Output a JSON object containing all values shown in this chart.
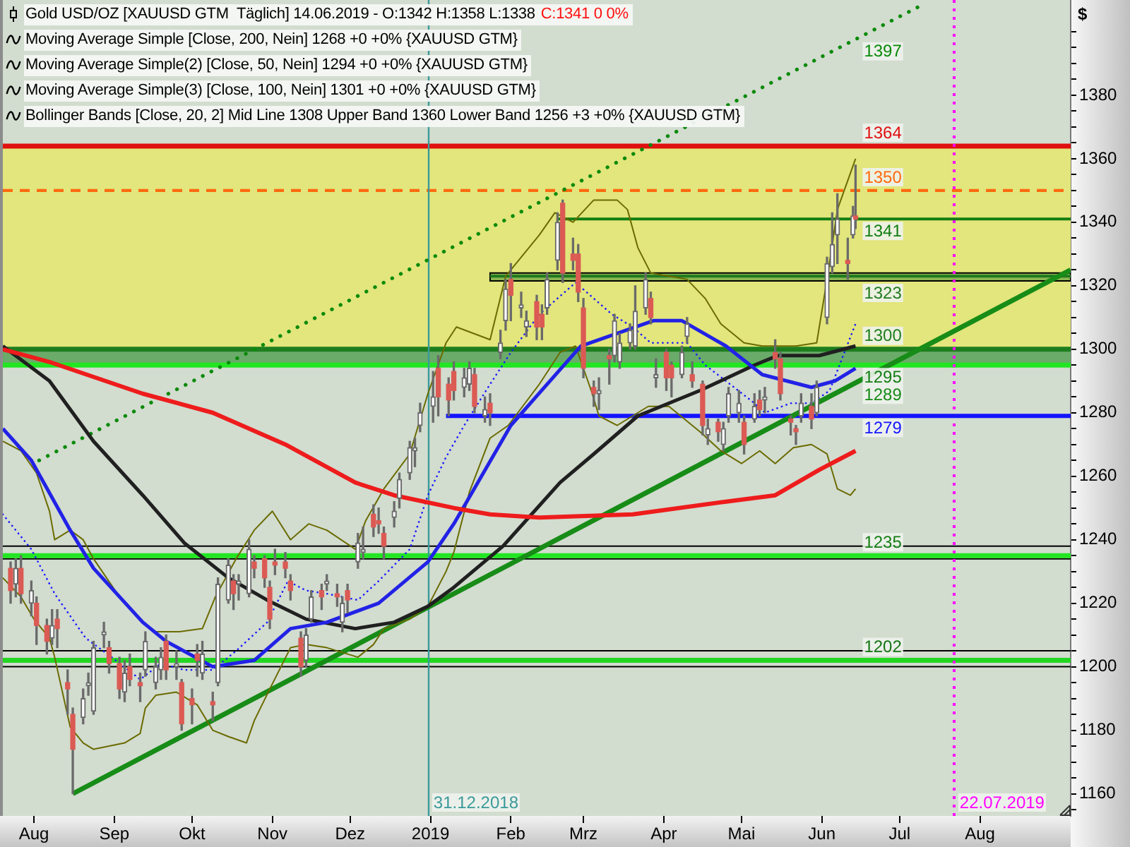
{
  "chart_data": {
    "type": "candlestick",
    "title": "Gold USD/OZ [XAUUSD GTM  Täglich] 14.06.2019 - O:1342 H:1358 L:1338",
    "subtitle": "C:1341 0 0%",
    "ylabel": "$",
    "annotations": [
      "Moving Average Simple [Close, 200, Nein] 1268 +0 +0% {XAUUSD GTM}",
      "Moving Average Simple(2) [Close, 50, Nein] 1294 +0 +0% {XAUUSD GTM}",
      "Moving Average Simple(3) [Close, 100, Nein] 1301 +0 +0% {XAUUSD GTM}",
      "Bollinger Bands [Close, 20, 2] Mid Line 1308 Upper Band 1360 Lower Band 1256 +3 +0% {XAUUSD GTM}"
    ],
    "x": [
      "2018-07-23",
      "2018-07-25",
      "2018-07-27",
      "2018-07-31",
      "2018-08-02",
      "2018-08-06",
      "2018-08-08",
      "2018-08-10",
      "2018-08-14",
      "2018-08-16",
      "2018-08-20",
      "2018-08-22",
      "2018-08-24",
      "2018-08-28",
      "2018-08-30",
      "2018-09-03",
      "2018-09-05",
      "2018-09-07",
      "2018-09-11",
      "2018-09-13",
      "2018-09-17",
      "2018-09-19",
      "2018-09-21",
      "2018-09-25",
      "2018-09-27",
      "2018-10-01",
      "2018-10-03",
      "2018-10-05",
      "2018-10-09",
      "2018-10-11",
      "2018-10-15",
      "2018-10-17",
      "2018-10-19",
      "2018-10-23",
      "2018-10-25",
      "2018-10-29",
      "2018-10-31",
      "2018-11-02",
      "2018-11-06",
      "2018-11-08",
      "2018-11-12",
      "2018-11-14",
      "2018-11-16",
      "2018-11-20",
      "2018-11-22",
      "2018-11-26",
      "2018-11-28",
      "2018-11-30",
      "2018-12-04",
      "2018-12-06",
      "2018-12-10",
      "2018-12-12",
      "2018-12-14",
      "2018-12-18",
      "2018-12-20",
      "2018-12-24",
      "2018-12-26",
      "2018-12-28",
      "2019-01-02",
      "2019-01-04",
      "2019-01-08",
      "2019-01-10",
      "2019-01-14",
      "2019-01-16",
      "2019-01-18",
      "2019-01-22",
      "2019-01-24",
      "2019-01-28",
      "2019-01-30",
      "2019-02-01",
      "2019-02-05",
      "2019-02-07",
      "2019-02-11",
      "2019-02-13",
      "2019-02-15",
      "2019-02-19",
      "2019-02-21",
      "2019-02-25",
      "2019-02-27",
      "2019-03-01",
      "2019-03-05",
      "2019-03-07",
      "2019-03-11",
      "2019-03-13",
      "2019-03-15",
      "2019-03-19",
      "2019-03-21",
      "2019-03-25",
      "2019-03-27",
      "2019-03-29",
      "2019-04-02",
      "2019-04-04",
      "2019-04-08",
      "2019-04-10",
      "2019-04-12",
      "2019-04-16",
      "2019-04-18",
      "2019-04-22",
      "2019-04-24",
      "2019-04-26",
      "2019-04-30",
      "2019-05-02",
      "2019-05-06",
      "2019-05-08",
      "2019-05-10",
      "2019-05-14",
      "2019-05-16",
      "2019-05-20",
      "2019-05-22",
      "2019-05-24",
      "2019-05-28",
      "2019-05-30",
      "2019-06-03",
      "2019-06-05",
      "2019-06-07",
      "2019-06-11",
      "2019-06-13",
      "2019-06-14"
    ],
    "ohlc": [
      [
        1231,
        1233,
        1220,
        1224
      ],
      [
        1226,
        1234,
        1222,
        1231
      ],
      [
        1231,
        1235,
        1220,
        1223
      ],
      [
        1220,
        1227,
        1216,
        1224
      ],
      [
        1220,
        1222,
        1207,
        1213
      ],
      [
        1213,
        1215,
        1204,
        1208
      ],
      [
        1209,
        1218,
        1207,
        1213
      ],
      [
        1215,
        1218,
        1206,
        1212
      ],
      [
        1195,
        1199,
        1185,
        1193
      ],
      [
        1185,
        1187,
        1160,
        1174
      ],
      [
        1184,
        1193,
        1182,
        1190
      ],
      [
        1194,
        1198,
        1191,
        1195
      ],
      [
        1186,
        1208,
        1185,
        1206
      ],
      [
        1210,
        1214,
        1206,
        1211
      ],
      [
        1206,
        1208,
        1198,
        1201
      ],
      [
        1201,
        1203,
        1190,
        1193
      ],
      [
        1192,
        1202,
        1189,
        1198
      ],
      [
        1200,
        1204,
        1194,
        1196
      ],
      [
        1195,
        1198,
        1189,
        1194
      ],
      [
        1199,
        1211,
        1197,
        1208
      ],
      [
        1195,
        1203,
        1193,
        1200
      ],
      [
        1199,
        1206,
        1196,
        1203
      ],
      [
        1208,
        1210,
        1196,
        1199
      ],
      [
        1200,
        1205,
        1196,
        1201
      ],
      [
        1195,
        1196,
        1180,
        1182
      ],
      [
        1190,
        1193,
        1182,
        1188
      ],
      [
        1204,
        1207,
        1197,
        1202
      ],
      [
        1198,
        1208,
        1196,
        1204
      ],
      [
        1189,
        1192,
        1183,
        1188
      ],
      [
        1195,
        1228,
        1194,
        1226
      ],
      [
        1221,
        1234,
        1220,
        1232
      ],
      [
        1227,
        1229,
        1218,
        1223
      ],
      [
        1226,
        1229,
        1221,
        1227
      ],
      [
        1223,
        1240,
        1222,
        1237
      ],
      [
        1233,
        1235,
        1228,
        1231
      ],
      [
        1234,
        1235,
        1225,
        1228
      ],
      [
        1225,
        1227,
        1212,
        1215
      ],
      [
        1233,
        1237,
        1229,
        1232
      ],
      [
        1233,
        1236,
        1228,
        1231
      ],
      [
        1227,
        1229,
        1221,
        1224
      ],
      [
        1209,
        1211,
        1197,
        1200
      ],
      [
        1202,
        1212,
        1200,
        1210
      ],
      [
        1215,
        1224,
        1214,
        1222
      ],
      [
        1224,
        1226,
        1218,
        1222
      ],
      [
        1226,
        1229,
        1224,
        1227
      ],
      [
        1223,
        1226,
        1219,
        1222
      ],
      [
        1214,
        1222,
        1211,
        1220
      ],
      [
        1224,
        1226,
        1217,
        1221
      ],
      [
        1233,
        1242,
        1231,
        1239
      ],
      [
        1236,
        1244,
        1234,
        1237
      ],
      [
        1248,
        1251,
        1241,
        1244
      ],
      [
        1246,
        1250,
        1242,
        1245
      ],
      [
        1242,
        1244,
        1234,
        1238
      ],
      [
        1247,
        1252,
        1244,
        1249
      ],
      [
        1253,
        1261,
        1250,
        1259
      ],
      [
        1261,
        1271,
        1259,
        1269
      ],
      [
        1268,
        1272,
        1263,
        1269
      ],
      [
        1276,
        1283,
        1274,
        1280
      ],
      [
        1282,
        1293,
        1277,
        1285
      ],
      [
        1294,
        1298,
        1279,
        1285
      ],
      [
        1289,
        1291,
        1279,
        1284
      ],
      [
        1293,
        1296,
        1284,
        1287
      ],
      [
        1288,
        1294,
        1285,
        1291
      ],
      [
        1289,
        1296,
        1287,
        1294
      ],
      [
        1292,
        1294,
        1280,
        1282
      ],
      [
        1279,
        1285,
        1277,
        1281
      ],
      [
        1283,
        1286,
        1276,
        1280
      ],
      [
        1299,
        1306,
        1297,
        1302
      ],
      [
        1309,
        1322,
        1306,
        1319
      ],
      [
        1322,
        1327,
        1309,
        1317
      ],
      [
        1313,
        1318,
        1310,
        1314
      ],
      [
        1307,
        1312,
        1304,
        1309
      ],
      [
        1315,
        1317,
        1303,
        1307
      ],
      [
        1311,
        1314,
        1303,
        1307
      ],
      [
        1313,
        1324,
        1311,
        1322
      ],
      [
        1328,
        1343,
        1325,
        1340
      ],
      [
        1346,
        1347,
        1321,
        1324
      ],
      [
        1330,
        1335,
        1325,
        1328
      ],
      [
        1330,
        1333,
        1315,
        1318
      ],
      [
        1313,
        1316,
        1291,
        1294
      ],
      [
        1288,
        1290,
        1282,
        1286
      ],
      [
        1286,
        1291,
        1281,
        1287
      ],
      [
        1298,
        1300,
        1289,
        1297
      ],
      [
        1298,
        1311,
        1296,
        1309
      ],
      [
        1296,
        1305,
        1294,
        1302
      ],
      [
        1302,
        1308,
        1300,
        1306
      ],
      [
        1301,
        1320,
        1300,
        1312
      ],
      [
        1313,
        1324,
        1311,
        1322
      ],
      [
        1316,
        1318,
        1308,
        1310
      ],
      [
        1291,
        1297,
        1288,
        1292
      ],
      [
        1299,
        1300,
        1287,
        1291
      ],
      [
        1295,
        1296,
        1285,
        1291
      ],
      [
        1292,
        1301,
        1291,
        1299
      ],
      [
        1304,
        1310,
        1302,
        1308
      ],
      [
        1292,
        1296,
        1288,
        1290
      ],
      [
        1289,
        1290,
        1273,
        1276
      ],
      [
        1273,
        1278,
        1270,
        1275
      ],
      [
        1277,
        1278,
        1271,
        1274
      ],
      [
        1270,
        1277,
        1268,
        1275
      ],
      [
        1279,
        1288,
        1277,
        1286
      ],
      [
        1280,
        1287,
        1277,
        1283
      ],
      [
        1277,
        1279,
        1267,
        1270
      ],
      [
        1278,
        1286,
        1277,
        1282
      ],
      [
        1284,
        1287,
        1279,
        1281
      ],
      [
        1284,
        1288,
        1280,
        1285
      ],
      [
        1299,
        1303,
        1294,
        1297
      ],
      [
        1297,
        1299,
        1284,
        1286
      ],
      [
        1278,
        1279,
        1273,
        1277
      ],
      [
        1275,
        1276,
        1270,
        1274
      ],
      [
        1279,
        1286,
        1277,
        1283
      ],
      [
        1282,
        1286,
        1275,
        1278
      ],
      [
        1280,
        1290,
        1279,
        1288
      ],
      [
        1310,
        1329,
        1308,
        1327
      ],
      [
        1326,
        1343,
        1324,
        1333
      ],
      [
        1336,
        1349,
        1327,
        1341
      ],
      [
        1328,
        1335,
        1322,
        1327
      ],
      [
        1336,
        1345,
        1335,
        1342
      ],
      [
        1342,
        1358,
        1338,
        1341
      ]
    ],
    "series": [
      {
        "type": "line",
        "color": "#ee1c1c",
        "x": [
          "2018-07-20",
          "2018-08-07",
          "2018-09-12",
          "2018-10-09",
          "2018-11-06",
          "2018-12-03",
          "2018-12-18",
          "2019-01-10",
          "2019-01-24",
          "2019-02-12",
          "2019-03-20",
          "2019-04-25",
          "2019-05-14",
          "2019-05-31",
          "2019-06-14"
        ],
        "values": [
          1300,
          1296,
          1286,
          1280,
          1270,
          1258,
          1254,
          1250,
          1248,
          1247,
          1248,
          1252,
          1254,
          1262,
          1268
        ]
      },
      {
        "type": "line",
        "color": "#2222e6",
        "x": [
          "2018-07-20",
          "2018-07-31",
          "2018-08-15",
          "2018-08-24",
          "2018-09-12",
          "2018-09-21",
          "2018-10-09",
          "2018-10-25",
          "2018-11-08",
          "2018-11-22",
          "2018-12-12",
          "2018-12-31",
          "2019-01-10",
          "2019-01-15",
          "2019-02-01",
          "2019-02-28",
          "2019-03-28",
          "2019-04-08",
          "2019-04-25",
          "2019-05-09",
          "2019-05-28",
          "2019-06-06",
          "2019-06-14"
        ],
        "values": [
          1275,
          1265,
          1243,
          1231,
          1214,
          1208,
          1200,
          1202,
          1212,
          1214,
          1220,
          1233,
          1245,
          1252,
          1276,
          1301,
          1309,
          1309,
          1301,
          1292,
          1288,
          1290,
          1294
        ]
      },
      {
        "type": "line",
        "color": "#202020",
        "x": [
          "2018-07-20",
          "2018-08-07",
          "2018-08-24",
          "2018-09-12",
          "2018-09-28",
          "2018-10-15",
          "2018-10-30",
          "2018-11-14",
          "2018-12-03",
          "2018-12-18",
          "2018-12-31",
          "2019-01-10",
          "2019-01-29",
          "2019-02-20",
          "2019-03-05",
          "2019-03-22",
          "2019-04-15",
          "2019-05-06",
          "2019-05-15",
          "2019-05-31",
          "2019-06-14"
        ],
        "values": [
          1301,
          1290,
          1271,
          1254,
          1239,
          1228,
          1221,
          1215,
          1212,
          1214,
          1219,
          1225,
          1238,
          1258,
          1267,
          1279,
          1287,
          1295,
          1298,
          1298,
          1301
        ]
      },
      {
        "type": "line",
        "color": "#6b6b00",
        "x": [
          "2018-07-20",
          "2018-07-27",
          "2018-08-02",
          "2018-08-07",
          "2018-08-09",
          "2018-08-15",
          "2018-08-20",
          "2018-08-24",
          "2018-09-03",
          "2018-09-12",
          "2018-09-17",
          "2018-09-26",
          "2018-10-05",
          "2018-10-10",
          "2018-10-18",
          "2018-10-25",
          "2018-11-01",
          "2018-11-08",
          "2018-11-15",
          "2018-11-22",
          "2018-12-03",
          "2018-12-07",
          "2018-12-14",
          "2018-12-24",
          "2018-12-31",
          "2019-01-07",
          "2019-01-11",
          "2019-01-24",
          "2019-01-30",
          "2019-02-12",
          "2019-02-18",
          "2019-02-25",
          "2019-03-05",
          "2019-03-14",
          "2019-03-18",
          "2019-03-22",
          "2019-03-27",
          "2019-04-10",
          "2019-04-17",
          "2019-04-23",
          "2019-05-02",
          "2019-05-09",
          "2019-05-22",
          "2019-05-30",
          "2019-05-31",
          "2019-06-03",
          "2019-06-07",
          "2019-06-14"
        ],
        "values": [
          1271,
          1268,
          1261,
          1249,
          1240,
          1243,
          1240,
          1234,
          1222,
          1214,
          1211,
          1211,
          1212,
          1222,
          1234,
          1243,
          1249,
          1240,
          1245,
          1243,
          1237,
          1246,
          1256,
          1267,
          1286,
          1302,
          1307,
          1303,
          1323,
          1336,
          1343,
          1340,
          1347,
          1347,
          1344,
          1332,
          1324,
          1322,
          1316,
          1308,
          1302,
          1301,
          1301,
          1302,
          1307,
          1322,
          1344,
          1360
        ]
      },
      {
        "type": "line",
        "color": "#6b6b00",
        "x": [
          "2018-07-20",
          "2018-07-27",
          "2018-08-01",
          "2018-08-07",
          "2018-08-09",
          "2018-08-15",
          "2018-08-20",
          "2018-08-24",
          "2018-09-05",
          "2018-09-11",
          "2018-09-13",
          "2018-09-17",
          "2018-09-25",
          "2018-10-03",
          "2018-10-09",
          "2018-10-15",
          "2018-10-22",
          "2018-10-25",
          "2018-10-31",
          "2018-11-08",
          "2018-11-14",
          "2018-11-22",
          "2018-12-04",
          "2018-12-10",
          "2018-12-14",
          "2018-12-24",
          "2018-12-31",
          "2019-01-07",
          "2019-01-10",
          "2019-01-16",
          "2019-01-24",
          "2019-01-31",
          "2019-02-12",
          "2019-02-20",
          "2019-02-26",
          "2019-03-04",
          "2019-03-07",
          "2019-03-14",
          "2019-03-26",
          "2019-04-03",
          "2019-04-15",
          "2019-04-23",
          "2019-05-01",
          "2019-05-08",
          "2019-05-14",
          "2019-05-21",
          "2019-05-28",
          "2019-06-03",
          "2019-06-07",
          "2019-06-12",
          "2019-06-14"
        ],
        "values": [
          1228,
          1222,
          1215,
          1209,
          1203,
          1181,
          1176,
          1174,
          1176,
          1179,
          1187,
          1191,
          1192,
          1188,
          1180,
          1178,
          1176,
          1183,
          1193,
          1206,
          1207,
          1206,
          1203,
          1207,
          1212,
          1215,
          1219,
          1230,
          1236,
          1255,
          1272,
          1276,
          1289,
          1299,
          1301,
          1287,
          1279,
          1276,
          1282,
          1282,
          1274,
          1268,
          1264,
          1268,
          1264,
          1269,
          1270,
          1267,
          1256,
          1254,
          1256
        ]
      },
      {
        "type": "line",
        "color": "#1a1aff",
        "line_style": "dotted",
        "x": [
          "2018-07-20",
          "2018-07-31",
          "2018-08-09",
          "2018-08-21",
          "2018-08-31",
          "2018-09-11",
          "2018-09-19",
          "2018-09-28",
          "2018-10-09",
          "2018-10-18",
          "2018-10-30",
          "2018-11-07",
          "2018-11-14",
          "2018-11-22",
          "2018-12-04",
          "2018-12-12",
          "2018-12-24",
          "2018-12-31",
          "2019-01-07",
          "2019-01-14",
          "2019-01-24",
          "2019-02-01",
          "2019-02-12",
          "2019-02-26",
          "2019-03-05",
          "2019-03-12",
          "2019-03-20",
          "2019-03-27",
          "2019-04-03",
          "2019-04-10",
          "2019-04-17",
          "2019-04-25",
          "2019-05-06",
          "2019-05-10",
          "2019-05-20",
          "2019-05-28",
          "2019-06-04",
          "2019-06-14"
        ],
        "values": [
          1248,
          1237,
          1223,
          1209,
          1203,
          1196,
          1201,
          1199,
          1199,
          1205,
          1214,
          1227,
          1224,
          1223,
          1221,
          1227,
          1237,
          1254,
          1266,
          1276,
          1289,
          1299,
          1311,
          1321,
          1316,
          1311,
          1307,
          1302,
          1302,
          1302,
          1295,
          1290,
          1283,
          1280,
          1283,
          1283,
          1287,
          1308
        ]
      },
      {
        "type": "line",
        "name": "1397",
        "color": "#0a8a0a",
        "line_style": "dotted",
        "x": [
          "2018-08-03",
          "2019-07-11"
        ],
        "values": [
          1265,
          1409
        ]
      },
      {
        "type": "line",
        "name": "1289",
        "color": "#178c17",
        "x": [
          "2018-08-16",
          "2019-09-05"
        ],
        "values": [
          1160,
          1325
        ]
      },
      {
        "type": "line",
        "name": "1341",
        "color": "#127d12",
        "x": [
          "2019-02-19",
          "2019-09-05"
        ],
        "values": [
          1341,
          1341
        ]
      },
      {
        "type": "line",
        "name": "1323",
        "color": "#1f7a1f",
        "x": [
          "2019-01-24",
          "2019-09-05"
        ],
        "values": [
          1323,
          1323
        ],
        "lower": [
          1321.5,
          1321.5
        ],
        "upper": [
          1324,
          1324
        ]
      },
      {
        "type": "line",
        "name": "1279",
        "color": "#1414ff",
        "x": [
          "2019-01-07",
          "2019-09-05"
        ],
        "values": [
          1279,
          1279
        ]
      }
    ],
    "xlim": [
      "2018-07-20",
      "2019-09-05"
    ],
    "xticks": [
      {
        "value": "2018-08-01",
        "label": "Aug"
      },
      {
        "value": "2018-09-01",
        "label": "Sep"
      },
      {
        "value": "2018-10-01",
        "label": "Okt"
      },
      {
        "value": "2018-11-01",
        "label": "Nov"
      },
      {
        "value": "2018-12-01",
        "label": "Dez"
      },
      {
        "value": "2019-01-01",
        "label": "2019"
      },
      {
        "value": "2019-02-01",
        "label": "Feb"
      },
      {
        "value": "2019-03-01",
        "label": "Mrz"
      },
      {
        "value": "2019-04-01",
        "label": "Apr"
      },
      {
        "value": "2019-05-01",
        "label": "Mai"
      },
      {
        "value": "2019-06-01",
        "label": "Jun"
      },
      {
        "value": "2019-07-01",
        "label": "Jul"
      },
      {
        "value": "2019-08-01",
        "label": "Aug"
      }
    ],
    "ylim": [
      1153,
      1410
    ],
    "yticks": [
      {
        "value": 1155,
        "label": null
      },
      1160,
      {
        "value": 1165,
        "label": null
      },
      {
        "value": 1170,
        "label": null
      },
      {
        "value": 1175,
        "label": null
      },
      1180,
      {
        "value": 1185,
        "label": null
      },
      {
        "value": 1190,
        "label": null
      },
      {
        "value": 1195,
        "label": null
      },
      1200,
      {
        "value": 1205,
        "label": null
      },
      {
        "value": 1210,
        "label": null
      },
      {
        "value": 1215,
        "label": null
      },
      1220,
      {
        "value": 1225,
        "label": null
      },
      {
        "value": 1230,
        "label": null
      },
      {
        "value": 1235,
        "label": null
      },
      1240,
      {
        "value": 1245,
        "label": null
      },
      {
        "value": 1250,
        "label": null
      },
      {
        "value": 1255,
        "label": null
      },
      1260,
      {
        "value": 1265,
        "label": null
      },
      {
        "value": 1270,
        "label": null
      },
      {
        "value": 1275,
        "label": null
      },
      1280,
      {
        "value": 1285,
        "label": null
      },
      {
        "value": 1290,
        "label": null
      },
      {
        "value": 1295,
        "label": null
      },
      1300,
      {
        "value": 1305,
        "label": null
      },
      {
        "value": 1310,
        "label": null
      },
      {
        "value": 1315,
        "label": null
      },
      1320,
      {
        "value": 1325,
        "label": null
      },
      {
        "value": 1330,
        "label": null
      },
      {
        "value": 1335,
        "label": null
      },
      1340,
      {
        "value": 1345,
        "label": null
      },
      {
        "value": 1350,
        "label": null
      },
      {
        "value": 1355,
        "label": null
      },
      1360,
      {
        "value": 1365,
        "label": null
      },
      {
        "value": 1370,
        "label": null
      },
      {
        "value": 1375,
        "label": null
      },
      1380,
      {
        "value": 1385,
        "label": null
      },
      {
        "value": 1390,
        "label": null
      },
      {
        "value": 1395,
        "label": null
      },
      {
        "value": 1400,
        "label": null
      }
    ],
    "bands": [
      {
        "axis": "y",
        "from": 1300,
        "to": 1364,
        "color": "#e2e67c"
      },
      {
        "axis": "y",
        "from": 1295,
        "to": 1300,
        "color": "#6aab6a"
      }
    ],
    "ref_lines": [
      {
        "axis": "y",
        "value": 1364,
        "label": "1364",
        "color": "#e01010"
      },
      {
        "axis": "y",
        "value": 1350,
        "label": "1350",
        "color": "#ff6a10",
        "line_style": "dashed"
      },
      {
        "axis": "y",
        "value": 1300,
        "label": "1300",
        "color": "#1e7e1e"
      },
      {
        "axis": "y",
        "value": 1295,
        "label": "1295",
        "color": "#22e622"
      },
      {
        "axis": "y",
        "value": 1238,
        "color": "#000000"
      },
      {
        "axis": "y",
        "value": 1234,
        "color": "#000000"
      },
      {
        "axis": "y",
        "value": 1235,
        "label": "1235",
        "color": "#22e622"
      },
      {
        "axis": "y",
        "value": 1205,
        "color": "#000000"
      },
      {
        "axis": "y",
        "value": 1200,
        "color": "#000000"
      },
      {
        "axis": "y",
        "value": 1202,
        "label": "1202",
        "color": "#22d622"
      },
      {
        "axis": "x",
        "value": "2018-12-31",
        "label": "31.12.2018",
        "color": "#3a9a9a"
      },
      {
        "axis": "x",
        "value": "2019-07-22",
        "label": "22.07.2019",
        "color": "#ff00ff",
        "line_style": "dotted"
      }
    ]
  }
}
